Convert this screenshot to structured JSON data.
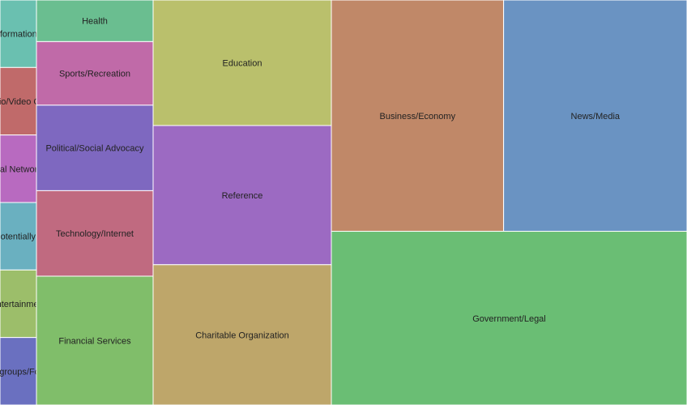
{
  "chart_data": {
    "type": "treemap",
    "title": "",
    "items": [
      {
        "label": "News/Media",
        "value": 64200,
        "color": "#6a93c2"
      },
      {
        "label": "Business/Economy",
        "value": 60300,
        "color": "#c08868"
      },
      {
        "label": "Government/Legal",
        "value": 93500,
        "color": "#6abe74"
      },
      {
        "label": "Education",
        "value": 34000,
        "color": "#bac06c"
      },
      {
        "label": "Reference",
        "value": 37700,
        "color": "#9c6ac2"
      },
      {
        "label": "Charitable Organization",
        "value": 38000,
        "color": "#bea66a"
      },
      {
        "label": "Health",
        "value": 7400,
        "color": "#6abe90"
      },
      {
        "label": "Sports/Recreation",
        "value": 11300,
        "color": "#c06aa8"
      },
      {
        "label": "Political/Social Advocacy",
        "value": 15200,
        "color": "#7e68c0"
      },
      {
        "label": "Technology/Internet",
        "value": 15200,
        "color": "#c06a80"
      },
      {
        "label": "Financial Services",
        "value": 22900,
        "color": "#80be6a"
      },
      {
        "label": "Informational",
        "value": 3800,
        "color": "#6ac0b0"
      },
      {
        "label": "Audio/Video Clips",
        "value": 3800,
        "color": "#c06a6a"
      },
      {
        "label": "Social Networking",
        "value": 3800,
        "color": "#b86ac0"
      },
      {
        "label": "Content/Potentially Offensive",
        "value": 3800,
        "color": "#6ab0c0"
      },
      {
        "label": "Entertainment",
        "value": 3800,
        "color": "#9cbe6a"
      },
      {
        "label": "Newsgroups/Forums",
        "value": 3800,
        "color": "#6a70c0"
      }
    ]
  }
}
